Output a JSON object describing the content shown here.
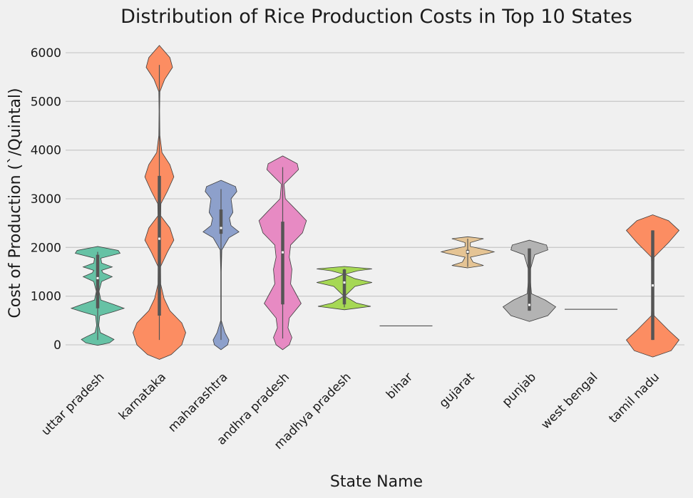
{
  "chart_data": {
    "type": "violin",
    "title": "Distribution of Rice Production Costs in Top 10 States",
    "xlabel": "State Name",
    "ylabel": "Cost of Production (`/Quintal)",
    "ylim": [
      -300,
      6200
    ],
    "yticks": [
      0,
      1000,
      2000,
      3000,
      4000,
      5000,
      6000
    ],
    "grid": "horizontal",
    "categories": [
      "uttar pradesh",
      "karnataka",
      "maharashtra",
      "andhra pradesh",
      "madhya pradesh",
      "bihar",
      "gujarat",
      "punjab",
      "west bengal",
      "tamil nadu"
    ],
    "colors": [
      "#66c2a5",
      "#fc8d62",
      "#8da0cb",
      "#e78ac3",
      "#a6d854",
      "#ffd92f",
      "#e5c494",
      "#b3b3b3",
      "#66c2a5",
      "#fc8d62"
    ],
    "series": [
      {
        "name": "uttar pradesh",
        "min": 100,
        "q1": 750,
        "median": 1370,
        "q3": 1850,
        "max": 1910,
        "profile": [
          [
            -10,
            0
          ],
          [
            40,
            0.45
          ],
          [
            110,
            0.62
          ],
          [
            160,
            0.45
          ],
          [
            250,
            0.1
          ],
          [
            400,
            0.04
          ],
          [
            600,
            0.08
          ],
          [
            680,
            0.6
          ],
          [
            750,
            1
          ],
          [
            830,
            0.6
          ],
          [
            920,
            0.12
          ],
          [
            1100,
            0.05
          ],
          [
            1300,
            0.15
          ],
          [
            1400,
            0.55
          ],
          [
            1480,
            0.2
          ],
          [
            1530,
            0.15
          ],
          [
            1600,
            0.55
          ],
          [
            1680,
            0.15
          ],
          [
            1780,
            0.12
          ],
          [
            1880,
            0.85
          ],
          [
            1940,
            0.78
          ],
          [
            2020,
            0
          ]
        ]
      },
      {
        "name": "karnataka",
        "min": 100,
        "q1": 600,
        "median": 2180,
        "q3": 3470,
        "max": 5750,
        "profile": [
          [
            -300,
            0
          ],
          [
            -200,
            0.45
          ],
          [
            0,
            0.85
          ],
          [
            250,
            1
          ],
          [
            450,
            0.85
          ],
          [
            700,
            0.4
          ],
          [
            950,
            0.18
          ],
          [
            1250,
            0.05
          ],
          [
            1600,
            0.04
          ],
          [
            1900,
            0.3
          ],
          [
            2150,
            0.55
          ],
          [
            2400,
            0.4
          ],
          [
            2650,
            0.05
          ],
          [
            2900,
            0.06
          ],
          [
            3150,
            0.3
          ],
          [
            3450,
            0.55
          ],
          [
            3700,
            0.4
          ],
          [
            3950,
            0.1
          ],
          [
            4300,
            0.02
          ],
          [
            4800,
            0.01
          ],
          [
            5200,
            0.02
          ],
          [
            5450,
            0.2
          ],
          [
            5700,
            0.5
          ],
          [
            5900,
            0.4
          ],
          [
            6150,
            0
          ]
        ]
      },
      {
        "name": "maharashtra",
        "min": 100,
        "q1": 2280,
        "median": 2400,
        "q3": 2780,
        "max": 3200,
        "profile": [
          [
            -100,
            0
          ],
          [
            0,
            0.25
          ],
          [
            100,
            0.3
          ],
          [
            250,
            0.15
          ],
          [
            500,
            0.01
          ],
          [
            1500,
            0.01
          ],
          [
            1950,
            0.03
          ],
          [
            2200,
            0.3
          ],
          [
            2320,
            0.68
          ],
          [
            2450,
            0.38
          ],
          [
            2600,
            0.32
          ],
          [
            2720,
            0.45
          ],
          [
            2850,
            0.42
          ],
          [
            3000,
            0.38
          ],
          [
            3150,
            0.6
          ],
          [
            3250,
            0.55
          ],
          [
            3380,
            0
          ]
        ]
      },
      {
        "name": "andhra pradesh",
        "min": 130,
        "q1": 830,
        "median": 1900,
        "q3": 2530,
        "max": 3650,
        "profile": [
          [
            -100,
            0
          ],
          [
            0,
            0.25
          ],
          [
            150,
            0.35
          ],
          [
            350,
            0.2
          ],
          [
            550,
            0.25
          ],
          [
            850,
            0.7
          ],
          [
            1050,
            0.5
          ],
          [
            1250,
            0.3
          ],
          [
            1550,
            0.35
          ],
          [
            1800,
            0.25
          ],
          [
            2050,
            0.3
          ],
          [
            2300,
            0.75
          ],
          [
            2550,
            0.9
          ],
          [
            2750,
            0.55
          ],
          [
            3000,
            0.1
          ],
          [
            3300,
            0.05
          ],
          [
            3600,
            0.6
          ],
          [
            3720,
            0.55
          ],
          [
            3880,
            0
          ]
        ]
      },
      {
        "name": "madhya pradesh",
        "min": 770,
        "q1": 830,
        "median": 1280,
        "q3": 1550,
        "max": 1560,
        "profile": [
          [
            720,
            0
          ],
          [
            790,
            1
          ],
          [
            860,
            0.45
          ],
          [
            1000,
            0.02
          ],
          [
            1200,
            0.4
          ],
          [
            1280,
            1.05
          ],
          [
            1360,
            0.4
          ],
          [
            1450,
            0.02
          ],
          [
            1520,
            0.5
          ],
          [
            1560,
            1.05
          ],
          [
            1610,
            0
          ]
        ]
      },
      {
        "name": "bihar",
        "min": 390,
        "q1": 390,
        "median": 390,
        "q3": 390,
        "max": 390,
        "profile": [
          [
            389,
            0
          ],
          [
            390,
            1
          ],
          [
            391,
            0
          ]
        ]
      },
      {
        "name": "gujarat",
        "min": 1600,
        "q1": 1870,
        "median": 1910,
        "q3": 1950,
        "max": 2180,
        "profile": [
          [
            1580,
            0
          ],
          [
            1630,
            0.6
          ],
          [
            1700,
            0.2
          ],
          [
            1800,
            0.1
          ],
          [
            1880,
            0.8
          ],
          [
            1910,
            1
          ],
          [
            1940,
            0.8
          ],
          [
            2020,
            0.1
          ],
          [
            2100,
            0.1
          ],
          [
            2180,
            0.6
          ],
          [
            2220,
            0
          ]
        ]
      },
      {
        "name": "punjab",
        "min": 700,
        "q1": 700,
        "median": 820,
        "q3": 1980,
        "max": 1980,
        "profile": [
          [
            480,
            0
          ],
          [
            600,
            0.7
          ],
          [
            780,
            1
          ],
          [
            920,
            0.6
          ],
          [
            1050,
            0.08
          ],
          [
            1500,
            0.01
          ],
          [
            1850,
            0.2
          ],
          [
            1950,
            0.7
          ],
          [
            2050,
            0.65
          ],
          [
            2150,
            0
          ]
        ]
      },
      {
        "name": "west bengal",
        "min": 730,
        "q1": 730,
        "median": 730,
        "q3": 730,
        "max": 730,
        "profile": [
          [
            729,
            0
          ],
          [
            730,
            1
          ],
          [
            731,
            0
          ]
        ]
      },
      {
        "name": "tamil nadu",
        "min": 100,
        "q1": 100,
        "median": 1220,
        "q3": 2350,
        "max": 2350,
        "profile": [
          [
            -250,
            0
          ],
          [
            -120,
            0.7
          ],
          [
            100,
            1
          ],
          [
            300,
            0.6
          ],
          [
            600,
            0.05
          ],
          [
            1200,
            0.01
          ],
          [
            1800,
            0.05
          ],
          [
            2100,
            0.6
          ],
          [
            2350,
            1
          ],
          [
            2550,
            0.6
          ],
          [
            2670,
            0
          ]
        ]
      }
    ]
  }
}
